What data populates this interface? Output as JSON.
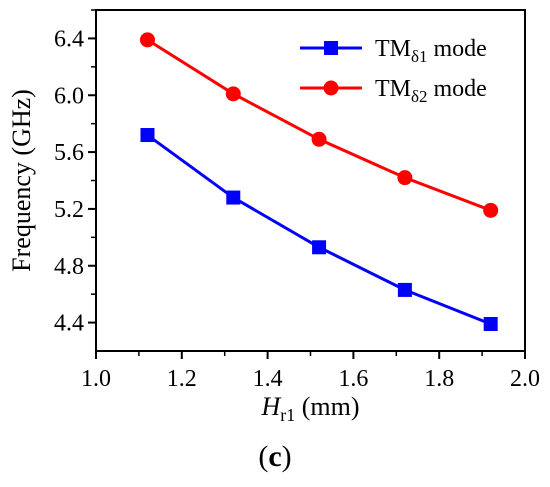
{
  "chart_data": {
    "type": "line",
    "xlabel": {
      "main": "H",
      "sub": "r1",
      "unit": " (mm)"
    },
    "ylabel": "Frequency (GHz)",
    "xlim": [
      1.0,
      2.0
    ],
    "ylim": [
      4.2,
      6.6
    ],
    "xticks": [
      "1.0",
      "1.2",
      "1.4",
      "1.6",
      "1.8",
      "2.0"
    ],
    "yticks": [
      "4.4",
      "4.8",
      "5.2",
      "5.6",
      "6.0",
      "6.4"
    ],
    "x": [
      1.12,
      1.32,
      1.52,
      1.72,
      1.92
    ],
    "series": [
      {
        "name": "TMδ1 mode",
        "name_base": "TM",
        "name_sub": "δ1",
        "name_suffix": " mode",
        "marker": "square",
        "color": "#0000ff",
        "values": [
          5.72,
          5.28,
          4.93,
          4.63,
          4.39
        ]
      },
      {
        "name": "TMδ2 mode",
        "name_base": "TM",
        "name_sub": "δ2",
        "name_suffix": " mode",
        "marker": "circle",
        "color": "#ff0000",
        "values": [
          6.39,
          6.01,
          5.69,
          5.42,
          5.19
        ]
      }
    ],
    "legend_position": "top-right",
    "grid": false
  },
  "panel_label": {
    "open": "(",
    "letter": "c",
    "close": ")"
  }
}
